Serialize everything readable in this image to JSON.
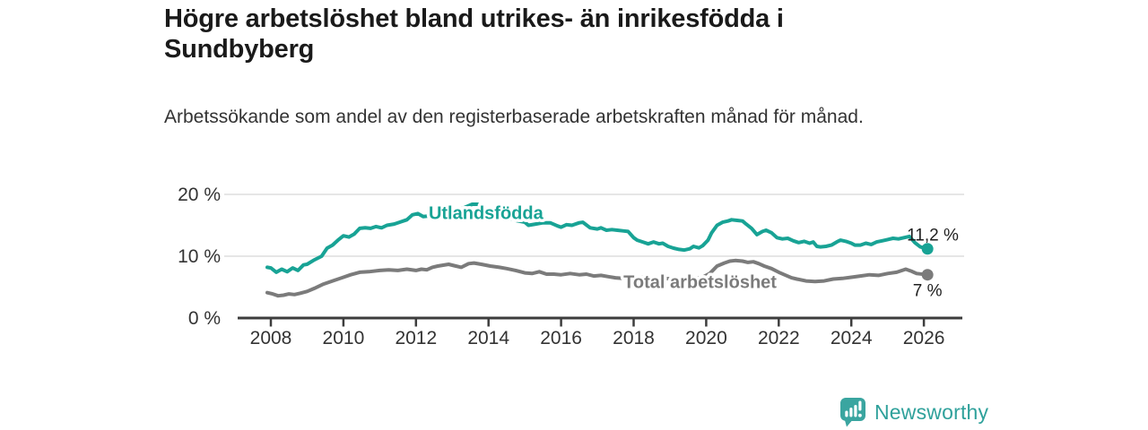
{
  "header": {
    "title": "Högre arbetslöshet bland utrikes- än inrikesfödda i Sundbyberg",
    "subtitle": "Arbetssökande som andel av den registerbaserade arbetskraften månad för månad."
  },
  "chart_data": {
    "type": "line",
    "unit": "%",
    "grid": "horizontal-light",
    "legend_position": "inline-labels-on-lines",
    "xlim": [
      2007.6,
      2027.2
    ],
    "ylim": [
      0,
      21
    ],
    "x_ticks": [
      {
        "v": 2008,
        "label": "2008"
      },
      {
        "v": 2010,
        "label": "2010"
      },
      {
        "v": 2012,
        "label": "2012"
      },
      {
        "v": 2014,
        "label": "2014"
      },
      {
        "v": 2016,
        "label": "2016"
      },
      {
        "v": 2018,
        "label": "2018"
      },
      {
        "v": 2020,
        "label": "2020"
      },
      {
        "v": 2022,
        "label": "2022"
      },
      {
        "v": 2024,
        "label": "2024"
      },
      {
        "v": 2026,
        "label": "2026"
      }
    ],
    "y_ticks": [
      {
        "v": 0,
        "label": "0 %"
      },
      {
        "v": 10,
        "label": "10 %"
      },
      {
        "v": 20,
        "label": "20 %"
      }
    ],
    "colors": {
      "axis": "#3D3D3D",
      "grid": "#DEDEDE",
      "tick_labels": "#333333",
      "value_labels": "#1F1F1F"
    },
    "series": [
      {
        "name": "Utlandsfödda",
        "color": "#18A395",
        "inline_label": {
          "text": "Utlandsfödda",
          "at": [
            2012.35,
            16.9
          ]
        },
        "end": {
          "dot": [
            2026.1,
            11.2
          ],
          "label": "11,2 %",
          "placement": "above"
        },
        "points": [
          [
            2007.9,
            8.2
          ],
          [
            2008.0,
            8.1
          ],
          [
            2008.15,
            7.4
          ],
          [
            2008.3,
            7.9
          ],
          [
            2008.45,
            7.5
          ],
          [
            2008.6,
            8.1
          ],
          [
            2008.75,
            7.7
          ],
          [
            2008.9,
            8.6
          ],
          [
            2009.0,
            8.7
          ],
          [
            2009.2,
            9.4
          ],
          [
            2009.4,
            10.0
          ],
          [
            2009.55,
            11.3
          ],
          [
            2009.7,
            11.8
          ],
          [
            2009.85,
            12.6
          ],
          [
            2010.0,
            13.3
          ],
          [
            2010.15,
            13.1
          ],
          [
            2010.3,
            13.6
          ],
          [
            2010.45,
            14.5
          ],
          [
            2010.6,
            14.6
          ],
          [
            2010.75,
            14.5
          ],
          [
            2010.9,
            14.8
          ],
          [
            2011.05,
            14.6
          ],
          [
            2011.2,
            15.0
          ],
          [
            2011.4,
            15.2
          ],
          [
            2011.6,
            15.6
          ],
          [
            2011.75,
            15.9
          ],
          [
            2011.9,
            16.7
          ],
          [
            2012.05,
            16.9
          ],
          [
            2012.2,
            16.4
          ],
          [
            2012.5,
            16.6
          ],
          [
            2012.8,
            16.9
          ],
          [
            2013.1,
            17.3
          ],
          [
            2013.35,
            17.9
          ],
          [
            2013.55,
            18.4
          ],
          [
            2013.7,
            18.4
          ],
          [
            2013.9,
            17.8
          ],
          [
            2014.2,
            17.0
          ],
          [
            2014.5,
            16.3
          ],
          [
            2014.75,
            15.8
          ],
          [
            2015.0,
            15.5
          ],
          [
            2015.1,
            15.0
          ],
          [
            2015.3,
            15.2
          ],
          [
            2015.5,
            15.4
          ],
          [
            2015.7,
            15.4
          ],
          [
            2015.9,
            14.9
          ],
          [
            2016.0,
            14.7
          ],
          [
            2016.15,
            15.1
          ],
          [
            2016.3,
            15.0
          ],
          [
            2016.5,
            15.4
          ],
          [
            2016.6,
            15.5
          ],
          [
            2016.8,
            14.6
          ],
          [
            2017.0,
            14.4
          ],
          [
            2017.1,
            14.6
          ],
          [
            2017.25,
            14.2
          ],
          [
            2017.4,
            14.3
          ],
          [
            2017.55,
            14.2
          ],
          [
            2017.7,
            14.1
          ],
          [
            2017.85,
            14.0
          ],
          [
            2018.0,
            13.0
          ],
          [
            2018.1,
            12.6
          ],
          [
            2018.25,
            12.3
          ],
          [
            2018.4,
            12.0
          ],
          [
            2018.55,
            12.3
          ],
          [
            2018.7,
            12.0
          ],
          [
            2018.8,
            12.1
          ],
          [
            2018.95,
            11.6
          ],
          [
            2019.1,
            11.3
          ],
          [
            2019.25,
            11.1
          ],
          [
            2019.4,
            11.0
          ],
          [
            2019.55,
            11.2
          ],
          [
            2019.65,
            11.6
          ],
          [
            2019.8,
            11.35
          ],
          [
            2019.9,
            11.7
          ],
          [
            2020.05,
            12.6
          ],
          [
            2020.15,
            13.8
          ],
          [
            2020.3,
            15.0
          ],
          [
            2020.45,
            15.5
          ],
          [
            2020.6,
            15.7
          ],
          [
            2020.7,
            15.9
          ],
          [
            2020.85,
            15.8
          ],
          [
            2021.0,
            15.7
          ],
          [
            2021.1,
            15.2
          ],
          [
            2021.25,
            14.5
          ],
          [
            2021.4,
            13.5
          ],
          [
            2021.55,
            14.0
          ],
          [
            2021.65,
            14.2
          ],
          [
            2021.8,
            13.8
          ],
          [
            2021.95,
            13.0
          ],
          [
            2022.1,
            12.8
          ],
          [
            2022.25,
            12.9
          ],
          [
            2022.4,
            12.5
          ],
          [
            2022.55,
            12.2
          ],
          [
            2022.7,
            12.4
          ],
          [
            2022.85,
            12.1
          ],
          [
            2022.95,
            12.3
          ],
          [
            2023.05,
            11.6
          ],
          [
            2023.15,
            11.5
          ],
          [
            2023.3,
            11.6
          ],
          [
            2023.45,
            11.8
          ],
          [
            2023.6,
            12.3
          ],
          [
            2023.7,
            12.6
          ],
          [
            2023.85,
            12.4
          ],
          [
            2024.0,
            12.1
          ],
          [
            2024.1,
            11.8
          ],
          [
            2024.25,
            11.8
          ],
          [
            2024.4,
            12.1
          ],
          [
            2024.55,
            11.9
          ],
          [
            2024.7,
            12.3
          ],
          [
            2024.85,
            12.5
          ],
          [
            2025.0,
            12.7
          ],
          [
            2025.15,
            12.9
          ],
          [
            2025.3,
            12.8
          ],
          [
            2025.45,
            13.0
          ],
          [
            2025.6,
            13.2
          ],
          [
            2025.75,
            12.2
          ],
          [
            2025.9,
            11.5
          ],
          [
            2026.1,
            11.2
          ]
        ]
      },
      {
        "name": "Total arbetslöshet",
        "color": "#7B7B7B",
        "inline_label": {
          "text": "Total arbetslöshet",
          "at": [
            2017.72,
            5.75
          ]
        },
        "end": {
          "dot": [
            2026.1,
            7.0
          ],
          "label": "7 %",
          "placement": "below"
        },
        "points": [
          [
            2007.9,
            4.1
          ],
          [
            2008.05,
            3.9
          ],
          [
            2008.2,
            3.6
          ],
          [
            2008.35,
            3.7
          ],
          [
            2008.5,
            3.9
          ],
          [
            2008.65,
            3.8
          ],
          [
            2008.8,
            4.0
          ],
          [
            2009.0,
            4.3
          ],
          [
            2009.2,
            4.8
          ],
          [
            2009.45,
            5.5
          ],
          [
            2009.7,
            6.0
          ],
          [
            2010.0,
            6.6
          ],
          [
            2010.2,
            7.0
          ],
          [
            2010.45,
            7.4
          ],
          [
            2010.7,
            7.5
          ],
          [
            2011.0,
            7.7
          ],
          [
            2011.25,
            7.8
          ],
          [
            2011.5,
            7.7
          ],
          [
            2011.75,
            7.9
          ],
          [
            2012.0,
            7.7
          ],
          [
            2012.15,
            7.9
          ],
          [
            2012.3,
            7.8
          ],
          [
            2012.45,
            8.2
          ],
          [
            2012.6,
            8.4
          ],
          [
            2012.9,
            8.7
          ],
          [
            2013.1,
            8.4
          ],
          [
            2013.25,
            8.2
          ],
          [
            2013.45,
            8.8
          ],
          [
            2013.6,
            8.9
          ],
          [
            2013.8,
            8.7
          ],
          [
            2014.05,
            8.4
          ],
          [
            2014.3,
            8.2
          ],
          [
            2014.5,
            8.0
          ],
          [
            2014.75,
            7.7
          ],
          [
            2015.0,
            7.3
          ],
          [
            2015.2,
            7.2
          ],
          [
            2015.4,
            7.5
          ],
          [
            2015.6,
            7.1
          ],
          [
            2015.8,
            7.1
          ],
          [
            2016.0,
            7.0
          ],
          [
            2016.25,
            7.2
          ],
          [
            2016.5,
            7.0
          ],
          [
            2016.7,
            7.1
          ],
          [
            2016.9,
            6.8
          ],
          [
            2017.1,
            6.9
          ],
          [
            2017.3,
            6.7
          ],
          [
            2017.5,
            6.5
          ],
          [
            2017.7,
            6.4
          ],
          [
            2017.9,
            6.5
          ],
          [
            2018.2,
            6.6
          ],
          [
            2018.5,
            6.5
          ],
          [
            2018.8,
            6.4
          ],
          [
            2019.1,
            6.3
          ],
          [
            2019.4,
            6.3
          ],
          [
            2019.7,
            6.4
          ],
          [
            2019.9,
            6.6
          ],
          [
            2020.1,
            7.2
          ],
          [
            2020.3,
            8.4
          ],
          [
            2020.5,
            8.9
          ],
          [
            2020.65,
            9.2
          ],
          [
            2020.8,
            9.3
          ],
          [
            2021.0,
            9.2
          ],
          [
            2021.15,
            9.0
          ],
          [
            2021.3,
            9.1
          ],
          [
            2021.45,
            8.8
          ],
          [
            2021.6,
            8.4
          ],
          [
            2021.8,
            8.0
          ],
          [
            2022.0,
            7.4
          ],
          [
            2022.2,
            6.9
          ],
          [
            2022.35,
            6.5
          ],
          [
            2022.5,
            6.3
          ],
          [
            2022.75,
            6.0
          ],
          [
            2023.0,
            5.9
          ],
          [
            2023.25,
            6.0
          ],
          [
            2023.5,
            6.3
          ],
          [
            2023.75,
            6.4
          ],
          [
            2024.0,
            6.6
          ],
          [
            2024.25,
            6.8
          ],
          [
            2024.5,
            7.0
          ],
          [
            2024.75,
            6.9
          ],
          [
            2025.0,
            7.2
          ],
          [
            2025.25,
            7.4
          ],
          [
            2025.5,
            7.9
          ],
          [
            2025.65,
            7.6
          ],
          [
            2025.8,
            7.2
          ],
          [
            2026.1,
            7.0
          ]
        ]
      }
    ]
  },
  "footer": {
    "brand": "Newsworthy",
    "brand_color": "#2FA19B",
    "icon": "bar-chart-speech-bubble",
    "icon_color": "#3AA5A0"
  }
}
